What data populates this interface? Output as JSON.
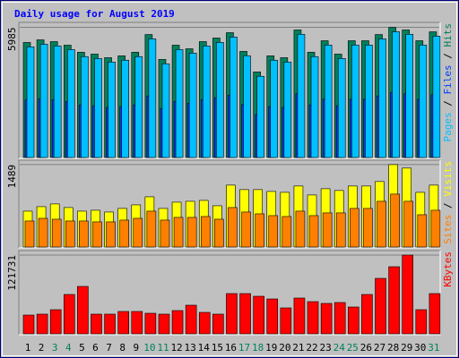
{
  "chart_data": [
    {
      "type": "bar",
      "title": "Daily usage for August 2019",
      "ylim": [
        0,
        6090
      ],
      "yticks": [
        5985
      ],
      "grid": true,
      "separator": "/",
      "series": [
        {
          "name": "Pages",
          "color": "#00c0ff",
          "values": [
            5090,
            5210,
            5130,
            4965,
            4640,
            4555,
            4390,
            4475,
            4640,
            5455,
            4310,
            4965,
            4800,
            5130,
            5295,
            5540,
            4680,
            3735,
            4475,
            4390,
            5665,
            4640,
            5170,
            4555,
            5170,
            5170,
            5455,
            5785,
            5665,
            5170,
            5580
          ]
        },
        {
          "name": "Files",
          "color": "#0040ff",
          "values": [
            2650,
            2700,
            2660,
            2580,
            2420,
            2380,
            2300,
            2340,
            2420,
            2830,
            2250,
            2580,
            2500,
            2660,
            2750,
            2870,
            2440,
            1970,
            2340,
            2300,
            2930,
            2420,
            2680,
            2380,
            2680,
            2680,
            2830,
            2990,
            2930,
            2680,
            2890
          ]
        },
        {
          "name": "Hits",
          "color": "#00805c",
          "values": [
            5290,
            5410,
            5330,
            5165,
            4840,
            4755,
            4590,
            4675,
            4840,
            5655,
            4510,
            5165,
            5000,
            5330,
            5495,
            5740,
            4880,
            3935,
            4675,
            4590,
            5865,
            4840,
            5370,
            4755,
            5370,
            5370,
            5655,
            5985,
            5865,
            5370,
            5780
          ]
        }
      ]
    },
    {
      "type": "bar",
      "ylim": [
        0,
        1520
      ],
      "yticks": [
        1489
      ],
      "grid": true,
      "separator": "/",
      "series": [
        {
          "name": "Sites",
          "color": "#ff8000",
          "values": [
            470,
            518,
            502,
            470,
            470,
            454,
            454,
            486,
            518,
            648,
            486,
            535,
            535,
            551,
            502,
            713,
            632,
            599,
            567,
            551,
            648,
            567,
            616,
            616,
            697,
            697,
            826,
            956,
            826,
            583,
            664
          ]
        },
        {
          "name": "Visits",
          "color": "#ffff00",
          "values": [
            648,
            729,
            778,
            713,
            648,
            664,
            632,
            697,
            761,
            907,
            697,
            810,
            826,
            842,
            745,
            1118,
            1037,
            1037,
            1004,
            988,
            1102,
            940,
            1053,
            1021,
            1102,
            1102,
            1183,
            1489,
            1426,
            988,
            1118
          ]
        }
      ]
    },
    {
      "type": "bar",
      "ylim": [
        0,
        124500
      ],
      "yticks": [
        121731
      ],
      "grid": true,
      "series": [
        {
          "name": "KBytes",
          "color": "#ff0000",
          "values": [
            29040,
            30430,
            37340,
            60850,
            73300,
            30430,
            30430,
            34580,
            34580,
            31810,
            30430,
            35960,
            44260,
            33190,
            30430,
            62240,
            62240,
            58090,
            53940,
            40110,
            55320,
            49790,
            47020,
            48410,
            41490,
            60850,
            85750,
            103730,
            121731,
            37340,
            62240
          ]
        }
      ],
      "categories": [
        "1",
        "2",
        "3",
        "4",
        "5",
        "6",
        "7",
        "8",
        "9",
        "10",
        "11",
        "12",
        "13",
        "14",
        "15",
        "16",
        "17",
        "18",
        "19",
        "20",
        "21",
        "22",
        "23",
        "24",
        "25",
        "26",
        "27",
        "28",
        "29",
        "30",
        "31"
      ],
      "category_colors": [
        "#000000",
        "#000000",
        "#00805c",
        "#00805c",
        "#000000",
        "#000000",
        "#000000",
        "#000000",
        "#000000",
        "#00805c",
        "#00805c",
        "#000000",
        "#000000",
        "#000000",
        "#000000",
        "#000000",
        "#00805c",
        "#00805c",
        "#000000",
        "#000000",
        "#000000",
        "#000000",
        "#000000",
        "#00805c",
        "#00805c",
        "#000000",
        "#000000",
        "#000000",
        "#000000",
        "#000000",
        "#00805c"
      ]
    }
  ]
}
